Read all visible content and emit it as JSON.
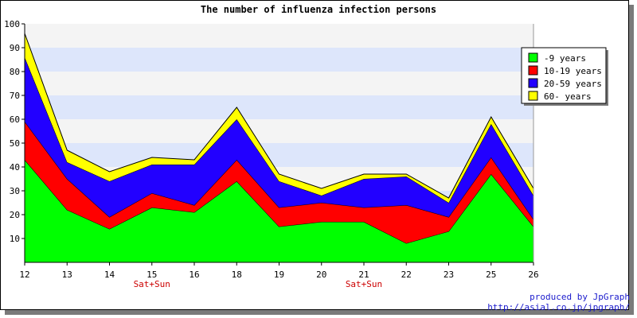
{
  "chart_data": {
    "type": "area",
    "stacked": true,
    "title": "The number of influenza infection persons",
    "categories": [
      "12",
      "13",
      "14",
      "15",
      "16",
      "18",
      "19",
      "20",
      "21",
      "22",
      "23",
      "25",
      "26"
    ],
    "ylim": [
      0,
      100
    ],
    "yticks": [
      10,
      20,
      30,
      40,
      50,
      60,
      70,
      80,
      90,
      100
    ],
    "grid": true,
    "band_colors": [
      "#f4f4f4",
      "#dde6fb"
    ],
    "legend_position": "right",
    "series": [
      {
        "name": "-9 years",
        "color": "#00ff00",
        "values": [
          43,
          22,
          14,
          23,
          21,
          34,
          15,
          17,
          17,
          8,
          13,
          37,
          15
        ]
      },
      {
        "name": "10-19 years",
        "color": "#ff0000",
        "values": [
          16,
          13,
          5,
          6,
          3,
          9,
          8,
          8,
          6,
          16,
          6,
          7,
          3
        ]
      },
      {
        "name": "20-59 years",
        "color": "#2200ff",
        "values": [
          27,
          7,
          15,
          12,
          17,
          17,
          11,
          3,
          12,
          12,
          6,
          14,
          10
        ]
      },
      {
        "name": "60- years",
        "color": "#ffff00",
        "values": [
          10,
          5,
          4,
          3,
          2,
          5,
          3,
          3,
          2,
          1,
          2,
          3,
          3
        ]
      }
    ],
    "annotations": [
      {
        "category": "15",
        "text": "Sat+Sun"
      },
      {
        "category": "21",
        "text": "Sat+Sun"
      }
    ]
  },
  "credits": {
    "line1": "produced by JpGraph",
    "line2": "http://asial.co.jp/jpgraph/"
  }
}
